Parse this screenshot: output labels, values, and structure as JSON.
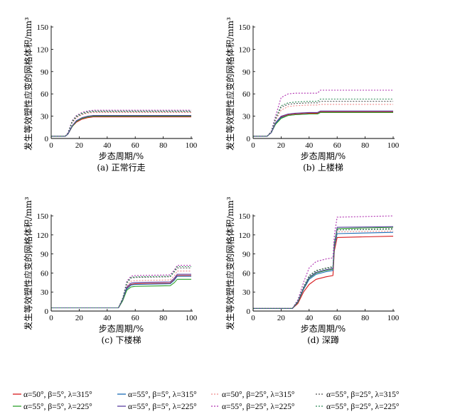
{
  "chart_data": [
    {
      "type": "line",
      "caption": "(a) 正常行走",
      "xlabel": "步态周期/%",
      "ylabel": "发生等效塑性应变的网格体积/mm³",
      "xlim": [
        0,
        100
      ],
      "ylim": [
        0,
        150
      ],
      "xticks": [
        "0",
        "20",
        "40",
        "60",
        "80",
        "100"
      ],
      "yticks": [
        "0",
        "30",
        "60",
        "90",
        "120",
        "150"
      ],
      "series": [
        {
          "style": "s1",
          "x": [
            0,
            10,
            12,
            15,
            18,
            22,
            26,
            30,
            100
          ],
          "y": [
            3,
            3,
            6,
            16,
            22,
            26,
            28,
            29,
            29
          ]
        },
        {
          "style": "s2",
          "x": [
            0,
            10,
            12,
            15,
            18,
            22,
            26,
            30,
            100
          ],
          "y": [
            3,
            3,
            6,
            17,
            23,
            27,
            29,
            30,
            30
          ]
        },
        {
          "style": "s3",
          "x": [
            0,
            10,
            12,
            15,
            18,
            22,
            26,
            30,
            100
          ],
          "y": [
            3,
            3,
            7,
            21,
            28,
            32,
            34,
            35,
            35
          ]
        },
        {
          "style": "s4",
          "x": [
            0,
            10,
            12,
            15,
            18,
            22,
            26,
            30,
            100
          ],
          "y": [
            3,
            3,
            7,
            22,
            29,
            33,
            35,
            36,
            36
          ]
        },
        {
          "style": "s5",
          "x": [
            0,
            10,
            12,
            15,
            18,
            22,
            26,
            30,
            100
          ],
          "y": [
            3,
            3,
            6,
            16,
            23,
            27,
            29,
            30,
            30
          ]
        },
        {
          "style": "s6",
          "x": [
            0,
            10,
            12,
            15,
            18,
            22,
            26,
            30,
            100
          ],
          "y": [
            3,
            3,
            6,
            17,
            24,
            28,
            30,
            31,
            31
          ]
        },
        {
          "style": "s7",
          "x": [
            0,
            10,
            12,
            15,
            18,
            22,
            26,
            30,
            100
          ],
          "y": [
            3,
            3,
            8,
            24,
            31,
            35,
            37,
            38,
            38
          ]
        },
        {
          "style": "s8",
          "x": [
            0,
            10,
            12,
            15,
            18,
            22,
            26,
            30,
            100
          ],
          "y": [
            3,
            3,
            7,
            23,
            30,
            34,
            36,
            37,
            37
          ]
        }
      ]
    },
    {
      "type": "line",
      "caption": "(b) 上楼梯",
      "xlabel": "步态周期/%",
      "ylabel": "发生等效塑性应变的网格体积/mm³",
      "xlim": [
        0,
        100
      ],
      "ylim": [
        0,
        150
      ],
      "xticks": [
        "0",
        "20",
        "40",
        "60",
        "80",
        "100"
      ],
      "yticks": [
        "0",
        "30",
        "60",
        "90",
        "120",
        "150"
      ],
      "series": [
        {
          "style": "s1",
          "x": [
            0,
            10,
            13,
            16,
            20,
            25,
            30,
            40,
            46,
            48,
            100
          ],
          "y": [
            3,
            3,
            8,
            20,
            29,
            32,
            33,
            34,
            34,
            36,
            36
          ]
        },
        {
          "style": "s2",
          "x": [
            0,
            10,
            13,
            16,
            20,
            25,
            30,
            40,
            46,
            48,
            100
          ],
          "y": [
            3,
            3,
            8,
            20,
            28,
            31,
            32,
            33,
            33,
            35,
            35
          ]
        },
        {
          "style": "s3",
          "x": [
            0,
            10,
            13,
            16,
            20,
            25,
            30,
            40,
            46,
            48,
            100
          ],
          "y": [
            3,
            3,
            9,
            24,
            38,
            43,
            44,
            45,
            45,
            46,
            46
          ]
        },
        {
          "style": "s4",
          "x": [
            0,
            10,
            13,
            16,
            20,
            25,
            30,
            40,
            46,
            48,
            100
          ],
          "y": [
            3,
            3,
            9,
            26,
            42,
            46,
            47,
            48,
            48,
            50,
            50
          ]
        },
        {
          "style": "s5",
          "x": [
            0,
            10,
            13,
            16,
            20,
            25,
            30,
            40,
            46,
            48,
            100
          ],
          "y": [
            3,
            3,
            8,
            19,
            27,
            31,
            32,
            33,
            33,
            35,
            35
          ]
        },
        {
          "style": "s6",
          "x": [
            0,
            10,
            13,
            16,
            20,
            25,
            30,
            40,
            46,
            48,
            100
          ],
          "y": [
            3,
            3,
            8,
            21,
            30,
            33,
            34,
            35,
            35,
            37,
            37
          ]
        },
        {
          "style": "s7",
          "x": [
            0,
            10,
            13,
            16,
            20,
            25,
            30,
            40,
            46,
            48,
            100
          ],
          "y": [
            3,
            3,
            10,
            30,
            55,
            60,
            61,
            61,
            61,
            65,
            65
          ]
        },
        {
          "style": "s8",
          "x": [
            0,
            10,
            13,
            16,
            20,
            25,
            30,
            40,
            46,
            48,
            100
          ],
          "y": [
            3,
            3,
            9,
            27,
            44,
            48,
            49,
            50,
            50,
            53,
            53
          ]
        }
      ]
    },
    {
      "type": "line",
      "caption": "(c) 下楼梯",
      "xlabel": "步态周期/%",
      "ylabel": "发生等效塑性应变的网格体积/mm³",
      "xlim": [
        0,
        100
      ],
      "ylim": [
        0,
        150
      ],
      "xticks": [
        "0",
        "20",
        "40",
        "60",
        "80",
        "100"
      ],
      "yticks": [
        "0",
        "30",
        "60",
        "90",
        "120",
        "150"
      ],
      "series": [
        {
          "style": "s1",
          "x": [
            0,
            48,
            51,
            54,
            57,
            60,
            85,
            88,
            90,
            100
          ],
          "y": [
            5,
            5,
            18,
            36,
            42,
            43,
            44,
            50,
            56,
            56
          ]
        },
        {
          "style": "s2",
          "x": [
            0,
            48,
            51,
            54,
            57,
            60,
            85,
            88,
            90,
            100
          ],
          "y": [
            5,
            5,
            17,
            35,
            41,
            42,
            43,
            49,
            55,
            55
          ]
        },
        {
          "style": "s3",
          "x": [
            0,
            48,
            51,
            54,
            57,
            60,
            85,
            88,
            90,
            100
          ],
          "y": [
            5,
            5,
            19,
            40,
            47,
            48,
            49,
            56,
            63,
            63
          ]
        },
        {
          "style": "s4",
          "x": [
            0,
            48,
            51,
            54,
            57,
            60,
            85,
            88,
            90,
            100
          ],
          "y": [
            5,
            5,
            20,
            44,
            52,
            53,
            54,
            62,
            68,
            68
          ]
        },
        {
          "style": "s5",
          "x": [
            0,
            48,
            51,
            54,
            57,
            60,
            85,
            88,
            90,
            100
          ],
          "y": [
            5,
            5,
            16,
            33,
            38,
            39,
            40,
            45,
            50,
            50
          ]
        },
        {
          "style": "s6",
          "x": [
            0,
            48,
            51,
            54,
            57,
            60,
            85,
            88,
            90,
            100
          ],
          "y": [
            5,
            5,
            18,
            38,
            44,
            45,
            46,
            52,
            58,
            58
          ]
        },
        {
          "style": "s7",
          "x": [
            0,
            48,
            51,
            54,
            57,
            60,
            85,
            88,
            90,
            100
          ],
          "y": [
            5,
            5,
            20,
            47,
            55,
            56,
            57,
            65,
            72,
            72
          ]
        },
        {
          "style": "s8",
          "x": [
            0,
            48,
            51,
            54,
            57,
            60,
            85,
            88,
            90,
            100
          ],
          "y": [
            5,
            5,
            20,
            45,
            53,
            54,
            55,
            63,
            70,
            70
          ]
        }
      ]
    },
    {
      "type": "line",
      "caption": "(d) 深蹲",
      "xlabel": "步态周期/%",
      "ylabel": "发生等效塑性应变的网格体积/mm³",
      "xlim": [
        0,
        100
      ],
      "ylim": [
        0,
        150
      ],
      "xticks": [
        "0",
        "20",
        "40",
        "60",
        "80",
        "100"
      ],
      "yticks": [
        "0",
        "30",
        "60",
        "90",
        "120",
        "150"
      ],
      "series": [
        {
          "style": "s1",
          "x": [
            0,
            28,
            32,
            36,
            40,
            45,
            52,
            57,
            58,
            60,
            100
          ],
          "y": [
            4,
            4,
            12,
            30,
            42,
            50,
            54,
            56,
            95,
            116,
            118
          ]
        },
        {
          "style": "s2",
          "x": [
            0,
            28,
            32,
            36,
            40,
            45,
            52,
            57,
            58,
            60,
            100
          ],
          "y": [
            4,
            4,
            14,
            34,
            50,
            58,
            62,
            64,
            100,
            122,
            124
          ]
        },
        {
          "style": "s3",
          "x": [
            0,
            28,
            32,
            36,
            40,
            45,
            52,
            57,
            58,
            60,
            100
          ],
          "y": [
            4,
            4,
            15,
            36,
            52,
            60,
            64,
            66,
            102,
            125,
            126
          ]
        },
        {
          "style": "s4",
          "x": [
            0,
            28,
            32,
            36,
            40,
            45,
            52,
            57,
            58,
            60,
            100
          ],
          "y": [
            4,
            4,
            16,
            38,
            56,
            64,
            68,
            70,
            106,
            128,
            130
          ]
        },
        {
          "style": "s5",
          "x": [
            0,
            28,
            32,
            36,
            40,
            45,
            52,
            57,
            58,
            60,
            100
          ],
          "y": [
            4,
            4,
            14,
            35,
            52,
            60,
            64,
            66,
            104,
            130,
            132
          ]
        },
        {
          "style": "s6",
          "x": [
            0,
            28,
            32,
            36,
            40,
            45,
            52,
            57,
            58,
            60,
            100
          ],
          "y": [
            4,
            4,
            15,
            36,
            53,
            61,
            65,
            67,
            106,
            132,
            133
          ]
        },
        {
          "style": "s7",
          "x": [
            0,
            28,
            32,
            36,
            40,
            45,
            52,
            57,
            58,
            60,
            100
          ],
          "y": [
            4,
            4,
            18,
            45,
            68,
            78,
            82,
            84,
            120,
            148,
            150
          ]
        },
        {
          "style": "s8",
          "x": [
            0,
            28,
            32,
            36,
            40,
            45,
            52,
            57,
            58,
            60,
            100
          ],
          "y": [
            4,
            4,
            16,
            38,
            55,
            63,
            67,
            69,
            108,
            128,
            129
          ]
        }
      ]
    }
  ],
  "styles": {
    "s1": {
      "color": "#d7191c",
      "dash": ""
    },
    "s2": {
      "color": "#1a6bb5",
      "dash": ""
    },
    "s3": {
      "color": "#ef8a8a",
      "dash": "2,2"
    },
    "s4": {
      "color": "#555555",
      "dash": "2,2"
    },
    "s5": {
      "color": "#2ca02c",
      "dash": ""
    },
    "s6": {
      "color": "#5b3fa0",
      "dash": ""
    },
    "s7": {
      "color": "#b030b0",
      "dash": "2,2"
    },
    "s8": {
      "color": "#2e8b57",
      "dash": "2,2"
    }
  },
  "legend": [
    {
      "style": "s1",
      "label": "α=50°, β=5°, λ=315°"
    },
    {
      "style": "s2",
      "label": "α=55°, β=5°, λ=315°"
    },
    {
      "style": "s3",
      "label": "α=50°, β=25°, λ=315°"
    },
    {
      "style": "s4",
      "label": "α=55°, β=25°, λ=315°"
    },
    {
      "style": "s5",
      "label": "α=55°, β=5°, λ=225°"
    },
    {
      "style": "s6",
      "label": "α=55°, β=5°, λ=225°"
    },
    {
      "style": "s7",
      "label": "α=55°, β=25°, λ=225°"
    },
    {
      "style": "s8",
      "label": "α=55°, β=25°, λ=225°"
    }
  ]
}
